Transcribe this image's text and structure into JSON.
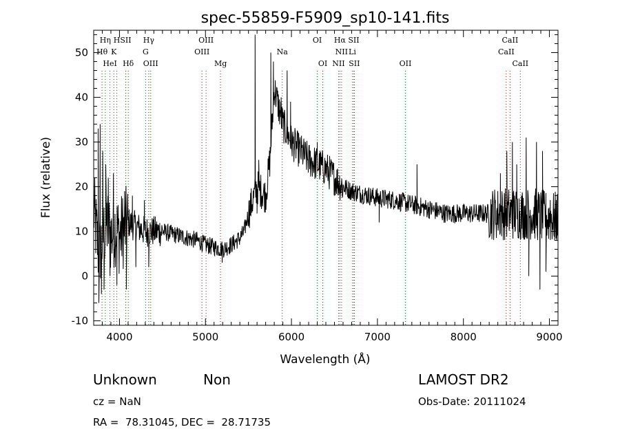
{
  "chart_data": {
    "type": "line",
    "title": "spec-55859-F5909_sp10-141.fits",
    "xlabel": "Wavelength (Å)",
    "ylabel": "Flux (relative)",
    "xlim": [
      3700,
      9100
    ],
    "ylim": [
      -11,
      55
    ],
    "xticks": [
      4000,
      5000,
      6000,
      7000,
      8000,
      9000
    ],
    "yticks": [
      -10,
      0,
      10,
      20,
      30,
      40,
      50
    ],
    "grid": false,
    "line_color": "#000000",
    "marker_color": "#cc0000",
    "anchors": [
      [
        3700,
        15
      ],
      [
        3760,
        5
      ],
      [
        3800,
        8
      ],
      [
        3850,
        12
      ],
      [
        3900,
        9
      ],
      [
        3950,
        11
      ],
      [
        4000,
        9
      ],
      [
        4100,
        12
      ],
      [
        4200,
        11
      ],
      [
        4300,
        10
      ],
      [
        4400,
        10
      ],
      [
        4500,
        10
      ],
      [
        4600,
        9.5
      ],
      [
        4700,
        9
      ],
      [
        4800,
        8.5
      ],
      [
        4900,
        8
      ],
      [
        5000,
        7
      ],
      [
        5100,
        6.5
      ],
      [
        5200,
        6
      ],
      [
        5300,
        7
      ],
      [
        5400,
        8.5
      ],
      [
        5450,
        10
      ],
      [
        5500,
        14
      ],
      [
        5550,
        17
      ],
      [
        5600,
        20
      ],
      [
        5650,
        19
      ],
      [
        5700,
        18
      ],
      [
        5750,
        26
      ],
      [
        5800,
        42
      ],
      [
        5850,
        38
      ],
      [
        5900,
        34
      ],
      [
        5950,
        32
      ],
      [
        6000,
        30
      ],
      [
        6100,
        28
      ],
      [
        6200,
        26
      ],
      [
        6300,
        25
      ],
      [
        6400,
        24
      ],
      [
        6500,
        22
      ],
      [
        6600,
        20
      ],
      [
        6700,
        19
      ],
      [
        6800,
        18.5
      ],
      [
        6900,
        18
      ],
      [
        7000,
        17.5
      ],
      [
        7200,
        17
      ],
      [
        7400,
        16
      ],
      [
        7600,
        15
      ],
      [
        7800,
        14
      ],
      [
        8000,
        14
      ],
      [
        8200,
        14
      ],
      [
        8400,
        14
      ],
      [
        8600,
        14
      ],
      [
        8800,
        14
      ],
      [
        9000,
        13
      ],
      [
        9100,
        13
      ]
    ],
    "spikes": [
      [
        3752,
        33
      ],
      [
        3760,
        -6
      ],
      [
        3775,
        34
      ],
      [
        3790,
        -4
      ],
      [
        3805,
        28
      ],
      [
        3820,
        -3
      ],
      [
        3840,
        25
      ],
      [
        3870,
        22
      ],
      [
        3890,
        0
      ],
      [
        3930,
        23
      ],
      [
        3970,
        -2
      ],
      [
        4060,
        19
      ],
      [
        4080,
        -3
      ],
      [
        4150,
        18
      ],
      [
        4190,
        2
      ],
      [
        4290,
        17
      ],
      [
        4340,
        2
      ],
      [
        5195,
        3
      ],
      [
        5577,
        54
      ],
      [
        5600,
        14
      ],
      [
        5620,
        26
      ],
      [
        5760,
        50
      ],
      [
        5790,
        48
      ],
      [
        5880,
        40
      ],
      [
        5950,
        46
      ],
      [
        5990,
        39
      ],
      [
        6300,
        30
      ],
      [
        7460,
        25
      ],
      [
        7020,
        12
      ],
      [
        8430,
        23
      ],
      [
        8505,
        28
      ],
      [
        8570,
        30
      ],
      [
        8620,
        25
      ],
      [
        8730,
        31
      ],
      [
        8760,
        0
      ],
      [
        8850,
        30
      ],
      [
        8890,
        -3
      ],
      [
        8920,
        28
      ],
      [
        8960,
        1
      ],
      [
        9010,
        17
      ],
      [
        9060,
        8
      ]
    ],
    "noise": [
      {
        "from": 3700,
        "to": 4100,
        "amp": 9
      },
      {
        "from": 4100,
        "to": 4500,
        "amp": 3.5
      },
      {
        "from": 4500,
        "to": 5500,
        "amp": 2
      },
      {
        "from": 5500,
        "to": 6600,
        "amp": 4
      },
      {
        "from": 6600,
        "to": 8300,
        "amp": 2.2
      },
      {
        "from": 8300,
        "to": 9100,
        "amp": 6
      }
    ],
    "lines": [
      {
        "name": "Hη",
        "wave": 3835,
        "row": 0,
        "dx": 0
      },
      {
        "name": "Hθ",
        "wave": 3797,
        "row": 1,
        "dx": 0
      },
      {
        "name": "HeI",
        "wave": 3889,
        "row": 2,
        "dx": 0
      },
      {
        "name": "K",
        "wave": 3934,
        "row": 1,
        "dx": 0
      },
      {
        "name": "H",
        "wave": 3969,
        "row": 0,
        "dx": 0
      },
      {
        "name": "SII",
        "wave": 4072,
        "row": 0,
        "dx": 0
      },
      {
        "name": "Hδ",
        "wave": 4102,
        "row": 2,
        "dx": 0
      },
      {
        "name": "Hγ",
        "wave": 4340,
        "row": 0,
        "dx": 0
      },
      {
        "name": "G",
        "wave": 4304,
        "row": 1,
        "dx": 0
      },
      {
        "name": "OIII",
        "wave": 4363,
        "row": 2,
        "dx": 0
      },
      {
        "name": "OIII",
        "wave": 5007,
        "row": 0,
        "dx": 0
      },
      {
        "name": "OIII",
        "wave": 4959,
        "row": 1,
        "dx": 0
      },
      {
        "name": "Mg",
        "wave": 5175,
        "row": 2,
        "dx": 0
      },
      {
        "name": "Na",
        "wave": 5893,
        "row": 1,
        "dx": 0
      },
      {
        "name": "OI",
        "wave": 6300,
        "row": 0,
        "dx": 0
      },
      {
        "name": "OI",
        "wave": 6364,
        "row": 2,
        "dx": 0
      },
      {
        "name": "Hα",
        "wave": 6563,
        "row": 0,
        "dx": 0
      },
      {
        "name": "SII",
        "wave": 6724,
        "row": 0,
        "dx": 0
      },
      {
        "name": "NII",
        "wave": 6583,
        "row": 1,
        "dx": 0
      },
      {
        "name": "Li",
        "wave": 6708,
        "row": 1,
        "dx": 0
      },
      {
        "name": "NII",
        "wave": 6548,
        "row": 2,
        "dx": 0
      },
      {
        "name": "SII",
        "wave": 6731,
        "row": 2,
        "dx": 0
      },
      {
        "name": "OII",
        "wave": 7325,
        "row": 2,
        "dx": 0
      },
      {
        "name": "CaII",
        "wave": 8542,
        "row": 0,
        "dx": 0
      },
      {
        "name": "CaII",
        "wave": 8498,
        "row": 1,
        "dx": 0
      },
      {
        "name": "CaII",
        "wave": 8662,
        "row": 2,
        "dx": 0
      }
    ]
  },
  "info": {
    "class": "Unknown",
    "subclass": "Non",
    "survey": "LAMOST DR2",
    "cz": "cz = NaN",
    "obs_date": "Obs-Date: 20111024",
    "radec": "RA =  78.31045, DEC =  28.71735"
  }
}
